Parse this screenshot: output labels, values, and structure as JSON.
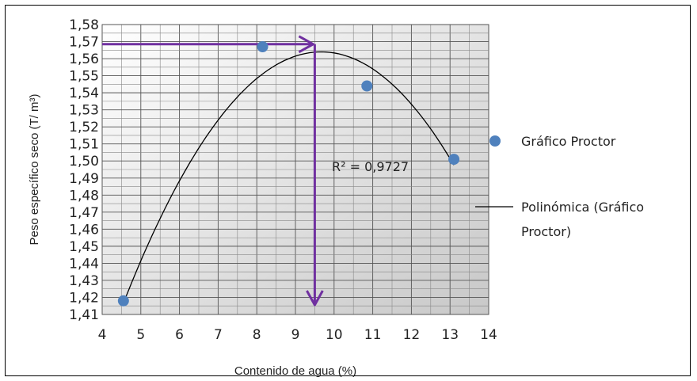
{
  "chart_data": {
    "type": "scatter",
    "xlabel": "Contenido de agua (%)",
    "ylabel": "Peso específico seco (T/ m³)",
    "xlim": [
      4,
      14
    ],
    "ylim": [
      1.41,
      1.58
    ],
    "x_ticks": [
      "4",
      "5",
      "6",
      "7",
      "8",
      "9",
      "10",
      "11",
      "12",
      "13",
      "14"
    ],
    "y_ticks": [
      "1,41",
      "1,42",
      "1,43",
      "1,44",
      "1,45",
      "1,46",
      "1,47",
      "1,48",
      "1,49",
      "1,50",
      "1,51",
      "1,52",
      "1,53",
      "1,54",
      "1,55",
      "1,56",
      "1,57",
      "1,58"
    ],
    "grid": true,
    "legend_position": "right",
    "series": [
      {
        "name": "Gráfico Proctor",
        "kind": "scatter",
        "color": "#4f81bd",
        "points": [
          {
            "x": 4.55,
            "y": 1.418
          },
          {
            "x": 8.15,
            "y": 1.567
          },
          {
            "x": 10.85,
            "y": 1.544
          },
          {
            "x": 13.1,
            "y": 1.501
          }
        ]
      },
      {
        "name": "Polinómica (Gráfico Proctor)",
        "kind": "trendline",
        "color": "#000000",
        "x_range": [
          4.55,
          13.1
        ],
        "points": [
          {
            "x": 4.55,
            "y": 1.419
          },
          {
            "x": 5.5,
            "y": 1.466
          },
          {
            "x": 6.5,
            "y": 1.505
          },
          {
            "x": 7.5,
            "y": 1.535
          },
          {
            "x": 8.5,
            "y": 1.556
          },
          {
            "x": 9.6,
            "y": 1.567
          },
          {
            "x": 10.5,
            "y": 1.562
          },
          {
            "x": 11.5,
            "y": 1.545
          },
          {
            "x": 12.5,
            "y": 1.519
          },
          {
            "x": 13.1,
            "y": 1.496
          }
        ]
      }
    ],
    "annotations": {
      "r_squared": "R² = 0,9727",
      "optimum_x": 9.5,
      "optimum_y": 1.5685,
      "arrow_color": "#7030a0"
    },
    "legend": [
      {
        "label": "Gráfico Proctor",
        "marker": "dot"
      },
      {
        "label_lines": [
          "Polinómica (Gráfico",
          "Proctor)"
        ],
        "marker": "line"
      }
    ]
  }
}
